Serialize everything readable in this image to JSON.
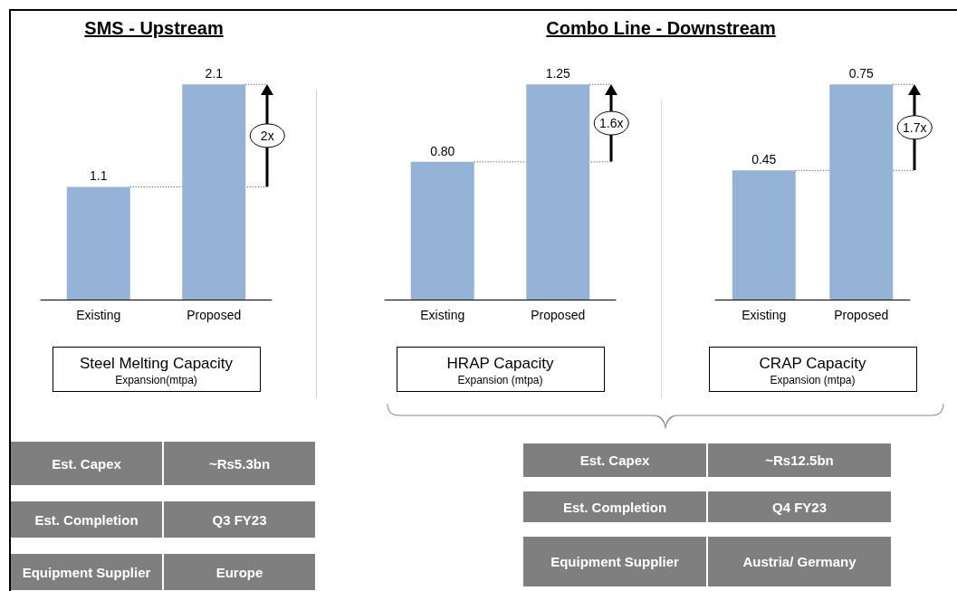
{
  "chart_data": [
    {
      "type": "bar",
      "title": "SMS - Upstream",
      "categories": [
        "Existing",
        "Proposed"
      ],
      "values": [
        1.1,
        2.1
      ],
      "value_labels": [
        "1.1",
        "2.1"
      ],
      "color": "#95b3d7",
      "ref_lines": [
        {
          "axis": "y",
          "value": 1.1,
          "line_style": "dotted"
        },
        {
          "axis": "y",
          "value": 2.1,
          "line_style": "dotted"
        }
      ],
      "annotations": [
        "2x",
        "Steel Melting Capacity",
        "Expansion(mtpa)"
      ]
    },
    {
      "type": "bar",
      "title": "Combo Line - Downstream",
      "categories": [
        "Existing",
        "Proposed"
      ],
      "values": [
        0.8,
        1.25
      ],
      "value_labels": [
        "0.80",
        "1.25"
      ],
      "color": "#95b3d7",
      "ref_lines": [
        {
          "axis": "y",
          "value": 0.8,
          "line_style": "dotted"
        },
        {
          "axis": "y",
          "value": 1.25,
          "line_style": "dotted"
        }
      ],
      "annotations": [
        "1.6x",
        "HRAP Capacity",
        "Expansion (mtpa)"
      ]
    },
    {
      "type": "bar",
      "categories": [
        "Existing",
        "Proposed"
      ],
      "values": [
        0.45,
        0.75
      ],
      "value_labels": [
        "0.45",
        "0.75"
      ],
      "color": "#95b3d7",
      "ref_lines": [
        {
          "axis": "y",
          "value": 0.45,
          "line_style": "dotted"
        },
        {
          "axis": "y",
          "value": 0.75,
          "line_style": "dotted"
        }
      ],
      "annotations": [
        "1.7x",
        "CRAP Capacity",
        "Expansion (mtpa)"
      ]
    },
    {
      "type": "other",
      "annotations": [
        "Est. Capex",
        "~Rs5.3bn",
        "Est. Completion",
        "Q3 FY23",
        "Equipment Supplier",
        "Europe"
      ]
    },
    {
      "type": "other",
      "annotations": [
        "Est. Capex",
        "~Rs12.5bn",
        "Est. Completion",
        "Q4 FY23",
        "Equipment Supplier",
        "Austria/ Germany"
      ]
    }
  ]
}
